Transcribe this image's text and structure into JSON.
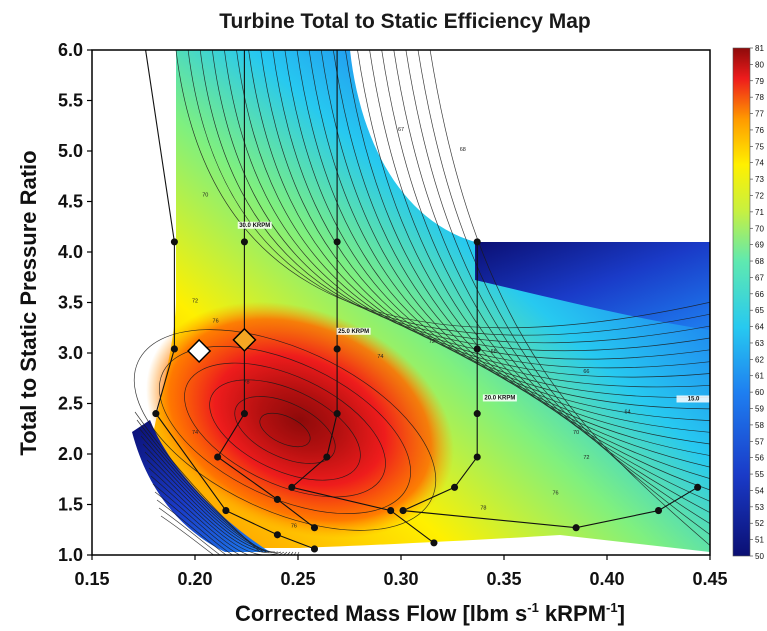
{
  "chart_data": {
    "type": "heatmap",
    "title": "Turbine Total to Static Efficiency Map",
    "xlabel_main": "Corrected Mass Flow [lbm s",
    "xlabel_sup1": "-1",
    "xlabel_mid": " kRPM",
    "xlabel_sup2": "-1",
    "xlabel_end": "]",
    "ylabel": "Total to Static Pressure Ratio",
    "xlim": [
      0.15,
      0.45
    ],
    "ylim": [
      1.0,
      6.0
    ],
    "x_ticks": [
      "0.15",
      "0.20",
      "0.25",
      "0.30",
      "0.35",
      "0.40",
      "0.45"
    ],
    "y_ticks": [
      "1.0",
      "1.5",
      "2.0",
      "2.5",
      "3.0",
      "3.5",
      "4.0",
      "4.5",
      "5.0",
      "5.5",
      "6.0"
    ],
    "colorbar": {
      "min": 50,
      "max": 81,
      "labels": [
        "50",
        "51",
        "52",
        "53",
        "54",
        "55",
        "56",
        "57",
        "58",
        "59",
        "60",
        "61",
        "62",
        "63",
        "64",
        "65",
        "66",
        "67",
        "68",
        "69",
        "70",
        "71",
        "72",
        "73",
        "74",
        "75",
        "76",
        "77",
        "78",
        "79",
        "80",
        "81"
      ]
    },
    "peak": {
      "x": 0.245,
      "y": 2.2,
      "value": 81
    },
    "speed_lines": [
      {
        "label": "30.0 KRPM",
        "points": [
          [
            0.176,
            6.0
          ],
          [
            0.19,
            4.1
          ],
          [
            0.19,
            3.04
          ],
          [
            0.181,
            2.4
          ],
          [
            0.215,
            1.44
          ],
          [
            0.24,
            1.2
          ],
          [
            0.258,
            1.06
          ]
        ]
      },
      {
        "label": "25.0 KRPM",
        "points": [
          [
            0.224,
            6.0
          ],
          [
            0.224,
            4.1
          ],
          [
            0.224,
            3.1
          ],
          [
            0.224,
            2.4
          ],
          [
            0.211,
            1.97
          ],
          [
            0.24,
            1.55
          ],
          [
            0.258,
            1.27
          ]
        ]
      },
      {
        "label": "20.0 KRPM",
        "points": [
          [
            0.269,
            6.0
          ],
          [
            0.269,
            4.1
          ],
          [
            0.269,
            3.04
          ],
          [
            0.269,
            2.4
          ],
          [
            0.264,
            1.97
          ],
          [
            0.247,
            1.67
          ],
          [
            0.295,
            1.44
          ],
          [
            0.316,
            1.12
          ]
        ]
      },
      {
        "label": "15.0",
        "points": [
          [
            0.337,
            4.1
          ],
          [
            0.337,
            3.04
          ],
          [
            0.337,
            2.4
          ],
          [
            0.337,
            1.97
          ],
          [
            0.326,
            1.67
          ],
          [
            0.301,
            1.44
          ],
          [
            0.385,
            1.27
          ],
          [
            0.425,
            1.44
          ],
          [
            0.444,
            1.67
          ]
        ]
      }
    ],
    "markers": [
      {
        "name": "white-diamond",
        "x": 0.202,
        "y": 3.02,
        "color": "#ffffff"
      },
      {
        "name": "orange-diamond",
        "x": 0.224,
        "y": 3.13,
        "color": "#f5a623"
      }
    ],
    "speed_labels": [
      {
        "text": "30.0 KRPM",
        "x": 0.229,
        "y": 4.25
      },
      {
        "text": "25.0 KRPM",
        "x": 0.277,
        "y": 3.2
      },
      {
        "text": "20.0 KRPM",
        "x": 0.348,
        "y": 2.54
      },
      {
        "text": "15.0",
        "x": 0.442,
        "y": 2.53
      }
    ],
    "contour_labels": [
      {
        "text": "70",
        "x": 0.205,
        "y": 4.55
      },
      {
        "text": "72",
        "x": 0.2,
        "y": 3.5
      },
      {
        "text": "76",
        "x": 0.21,
        "y": 3.3
      },
      {
        "text": "78",
        "x": 0.225,
        "y": 2.7
      },
      {
        "text": "74",
        "x": 0.29,
        "y": 2.95
      },
      {
        "text": "72",
        "x": 0.315,
        "y": 3.1
      },
      {
        "text": "68",
        "x": 0.345,
        "y": 3.0
      },
      {
        "text": "66",
        "x": 0.39,
        "y": 2.8
      },
      {
        "text": "64",
        "x": 0.41,
        "y": 2.4
      },
      {
        "text": "70",
        "x": 0.385,
        "y": 2.2
      },
      {
        "text": "72",
        "x": 0.39,
        "y": 1.95
      },
      {
        "text": "76",
        "x": 0.375,
        "y": 1.6
      },
      {
        "text": "78",
        "x": 0.34,
        "y": 1.45
      },
      {
        "text": "76",
        "x": 0.248,
        "y": 1.27
      },
      {
        "text": "74",
        "x": 0.2,
        "y": 2.2
      },
      {
        "text": "68",
        "x": 0.33,
        "y": 5.0
      },
      {
        "text": "67",
        "x": 0.3,
        "y": 5.2
      }
    ]
  }
}
